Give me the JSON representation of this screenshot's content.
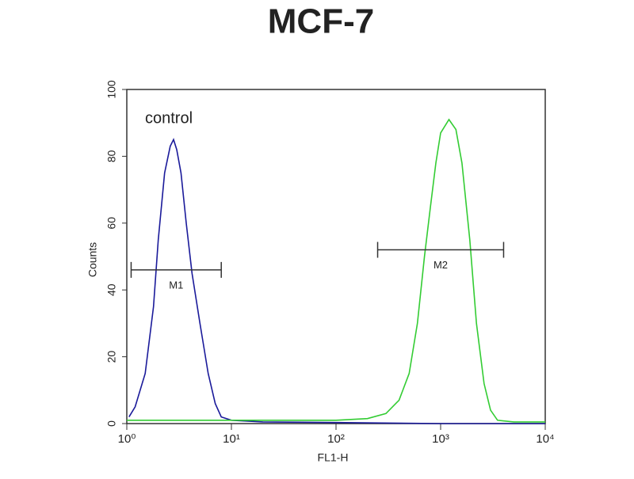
{
  "chart_data": {
    "type": "line",
    "title": "MCF-7",
    "x_label": "FL1-H",
    "y_label": "Counts",
    "annotation": "control",
    "xscale": "log",
    "xlim": [
      1,
      10000
    ],
    "xticks": [
      {
        "value": 1,
        "label": "10⁰"
      },
      {
        "value": 10,
        "label": "10¹"
      },
      {
        "value": 100,
        "label": "10²"
      },
      {
        "value": 1000,
        "label": "10³"
      },
      {
        "value": 10000,
        "label": "10⁴"
      }
    ],
    "ylim": [
      0,
      100
    ],
    "yticks": [
      0,
      20,
      40,
      60,
      80,
      100
    ],
    "series": [
      {
        "name": "control",
        "color": "#1a1a9a",
        "x": [
          1.05,
          1.2,
          1.5,
          1.8,
          2.0,
          2.3,
          2.6,
          2.8,
          3.0,
          3.3,
          3.7,
          4.2,
          5,
          6,
          7,
          8,
          10,
          20,
          100,
          1000,
          10000
        ],
        "values": [
          2,
          5,
          15,
          35,
          55,
          75,
          83,
          85,
          82,
          75,
          60,
          45,
          30,
          15,
          6,
          2,
          1,
          0.5,
          0.3,
          0,
          0
        ]
      },
      {
        "color": "#33cc33",
        "x": [
          1,
          10,
          100,
          200,
          300,
          400,
          500,
          600,
          700,
          800,
          900,
          1000,
          1200,
          1400,
          1600,
          1900,
          2200,
          2600,
          3000,
          3500,
          5000,
          10000
        ],
        "values": [
          1,
          1,
          1,
          1.5,
          3,
          7,
          15,
          30,
          50,
          65,
          78,
          87,
          91,
          88,
          78,
          55,
          30,
          12,
          4,
          1,
          0.5,
          0.5
        ]
      }
    ],
    "markers": [
      {
        "label": "M1",
        "x": [
          1.1,
          8
        ],
        "y": 46
      },
      {
        "label": "M2",
        "x": [
          250,
          4000
        ],
        "y": 52
      }
    ]
  }
}
